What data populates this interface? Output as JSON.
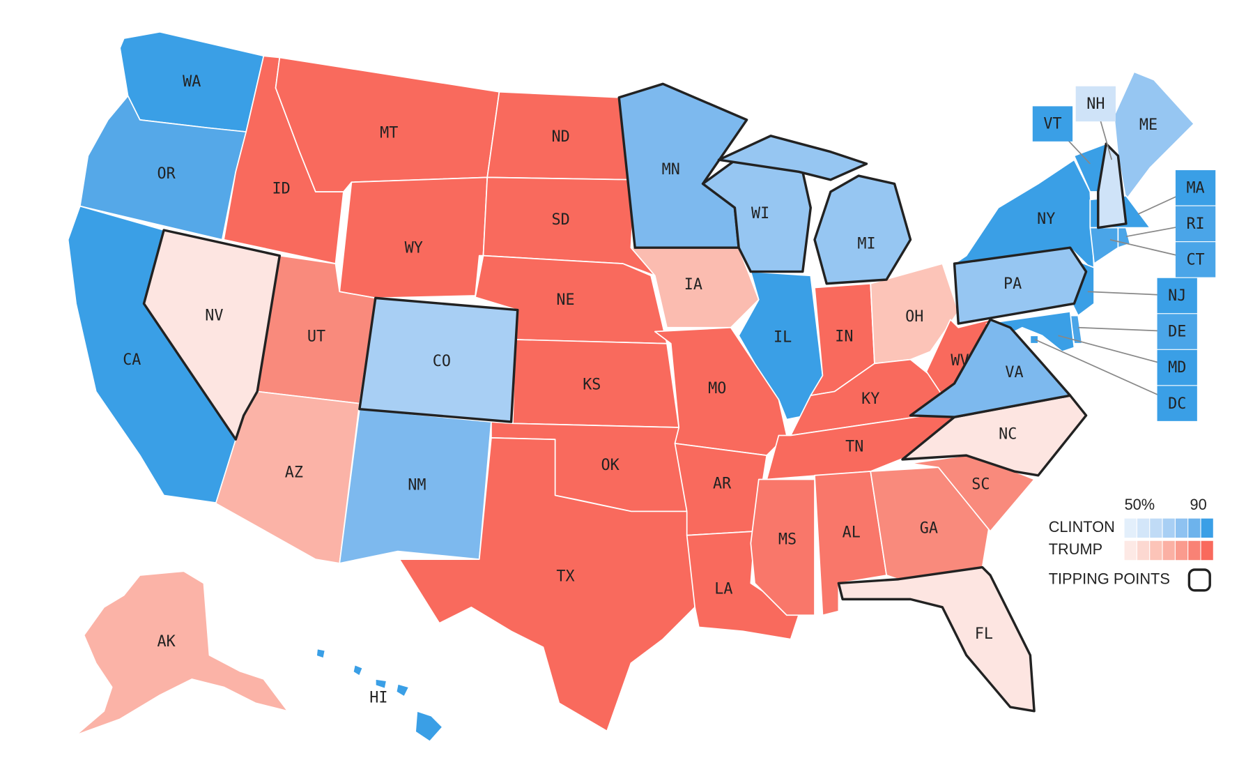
{
  "map": {
    "states": [
      {
        "label": "WA",
        "color": "#3a9fe6",
        "tipping_point": false
      },
      {
        "label": "OR",
        "color": "#55a8e8",
        "tipping_point": false
      },
      {
        "label": "CA",
        "color": "#3a9fe6",
        "tipping_point": false
      },
      {
        "label": "NV",
        "color": "#fde5e1",
        "tipping_point": true
      },
      {
        "label": "ID",
        "color": "#f96a5d",
        "tipping_point": false
      },
      {
        "label": "MT",
        "color": "#f96a5d",
        "tipping_point": false
      },
      {
        "label": "WY",
        "color": "#f96a5d",
        "tipping_point": false
      },
      {
        "label": "UT",
        "color": "#f98a7c",
        "tipping_point": false
      },
      {
        "label": "CO",
        "color": "#a8cff4",
        "tipping_point": true
      },
      {
        "label": "AZ",
        "color": "#fbb3a7",
        "tipping_point": false
      },
      {
        "label": "NM",
        "color": "#7db9ee",
        "tipping_point": false
      },
      {
        "label": "ND",
        "color": "#f96a5d",
        "tipping_point": false
      },
      {
        "label": "SD",
        "color": "#f96a5d",
        "tipping_point": false
      },
      {
        "label": "NE",
        "color": "#f96a5d",
        "tipping_point": false
      },
      {
        "label": "KS",
        "color": "#f96a5d",
        "tipping_point": false
      },
      {
        "label": "OK",
        "color": "#f96a5d",
        "tipping_point": false
      },
      {
        "label": "TX",
        "color": "#f96a5d",
        "tipping_point": false
      },
      {
        "label": "MN",
        "color": "#7db9ee",
        "tipping_point": true
      },
      {
        "label": "IA",
        "color": "#fbbcb0",
        "tipping_point": false
      },
      {
        "label": "MO",
        "color": "#f96a5d",
        "tipping_point": false
      },
      {
        "label": "AR",
        "color": "#f96a5d",
        "tipping_point": false
      },
      {
        "label": "LA",
        "color": "#f96a5d",
        "tipping_point": false
      },
      {
        "label": "WI",
        "color": "#96c6f2",
        "tipping_point": true
      },
      {
        "label": "IL",
        "color": "#3a9fe6",
        "tipping_point": false
      },
      {
        "label": "MI",
        "color": "#96c6f2",
        "tipping_point": true
      },
      {
        "label": "IN",
        "color": "#f96a5d",
        "tipping_point": false
      },
      {
        "label": "OH",
        "color": "#fcc4b8",
        "tipping_point": false
      },
      {
        "label": "KY",
        "color": "#f96a5d",
        "tipping_point": false
      },
      {
        "label": "TN",
        "color": "#f96a5d",
        "tipping_point": false
      },
      {
        "label": "MS",
        "color": "#f9776a",
        "tipping_point": false
      },
      {
        "label": "AL",
        "color": "#f9776a",
        "tipping_point": false
      },
      {
        "label": "GA",
        "color": "#f98a7c",
        "tipping_point": false
      },
      {
        "label": "SC",
        "color": "#f98a7c",
        "tipping_point": false
      },
      {
        "label": "NC",
        "color": "#fde5e1",
        "tipping_point": true
      },
      {
        "label": "FL",
        "color": "#fde5e1",
        "tipping_point": true
      },
      {
        "label": "VA",
        "color": "#7db9ee",
        "tipping_point": true
      },
      {
        "label": "WV",
        "color": "#f96a5d",
        "tipping_point": false
      },
      {
        "label": "PA",
        "color": "#96c6f2",
        "tipping_point": true
      },
      {
        "label": "NY",
        "color": "#3a9fe6",
        "tipping_point": false
      },
      {
        "label": "VT",
        "color": "#3a9fe6",
        "tipping_point": false
      },
      {
        "label": "NH",
        "color": "#cfe3f8",
        "tipping_point": true
      },
      {
        "label": "ME",
        "color": "#96c6f2",
        "tipping_point": false
      },
      {
        "label": "MA",
        "color": "#3a9fe6",
        "tipping_point": false
      },
      {
        "label": "CT",
        "color": "#4aa5e8",
        "tipping_point": false
      },
      {
        "label": "RI",
        "color": "#4aa5e8",
        "tipping_point": false
      },
      {
        "label": "NJ",
        "color": "#3a9fe6",
        "tipping_point": false
      },
      {
        "label": "DE",
        "color": "#4aa5e8",
        "tipping_point": false
      },
      {
        "label": "MD",
        "color": "#3a9fe6",
        "tipping_point": false
      },
      {
        "label": "DC",
        "color": "#3a9fe6",
        "tipping_point": false
      },
      {
        "label": "AK",
        "color": "#fbb3a7",
        "tipping_point": false
      },
      {
        "label": "HI",
        "color": "#3a9fe6",
        "tipping_point": false
      }
    ]
  },
  "legend": {
    "low_label": "50%",
    "high_label": "90",
    "clinton_label": "CLINTON",
    "trump_label": "TRUMP",
    "tipping_label": "TIPPING POINTS",
    "clinton_colors": [
      "#e3effb",
      "#d3e6f9",
      "#c0dbf6",
      "#a8cff4",
      "#8ec2f1",
      "#6db3ec",
      "#3a9fe6"
    ],
    "trump_colors": [
      "#fde9e5",
      "#fcd8d1",
      "#fcc4b8",
      "#fbb0a4",
      "#fa9b8e",
      "#f98275",
      "#f96a5d"
    ]
  }
}
